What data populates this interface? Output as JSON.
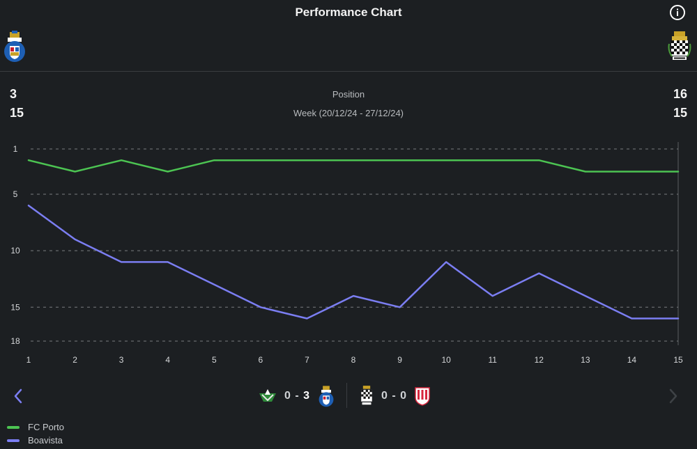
{
  "header": {
    "title": "Performance Chart",
    "info_icon": "info-icon",
    "home_crest": "fc-porto-crest",
    "away_crest": "boavista-crest"
  },
  "stats": {
    "position_label": "Position",
    "week_label": "Week (20/12/24 - 27/12/24)",
    "home_position": "3",
    "home_week": "15",
    "away_position": "16",
    "away_week": "15"
  },
  "colors": {
    "home": "#4cc452",
    "away": "#7b7ef2",
    "grid": "#7a7d80",
    "background": "#1c1f22"
  },
  "chart_data": {
    "type": "line",
    "x": [
      1,
      2,
      3,
      4,
      5,
      6,
      7,
      8,
      9,
      10,
      11,
      12,
      13,
      14,
      15
    ],
    "y_ticks": [
      1,
      5,
      10,
      15,
      18
    ],
    "ylim": [
      1,
      18
    ],
    "y_inverted": true,
    "grid": true,
    "series": [
      {
        "name": "FC Porto",
        "values": [
          2,
          3,
          2,
          3,
          2,
          2,
          2,
          2,
          2,
          2,
          2,
          2,
          3,
          3,
          3
        ]
      },
      {
        "name": "Boavista",
        "values": [
          6,
          9,
          11,
          11,
          13,
          15,
          16,
          14,
          15,
          11,
          14,
          12,
          14,
          16,
          16
        ]
      }
    ]
  },
  "matches": [
    {
      "home_icon": "moreirense-crest",
      "score_home": "0",
      "score_away": "3",
      "away_icon": "fc-porto-crest"
    },
    {
      "home_icon": "boavista-crest",
      "score_home": "0",
      "score_away": "0",
      "away_icon": "afs-crest"
    }
  ],
  "navigation": {
    "prev_icon": "chevron-left-icon",
    "next_icon": "chevron-right-icon"
  },
  "legend": [
    {
      "label": "FC Porto"
    },
    {
      "label": "Boavista"
    }
  ]
}
